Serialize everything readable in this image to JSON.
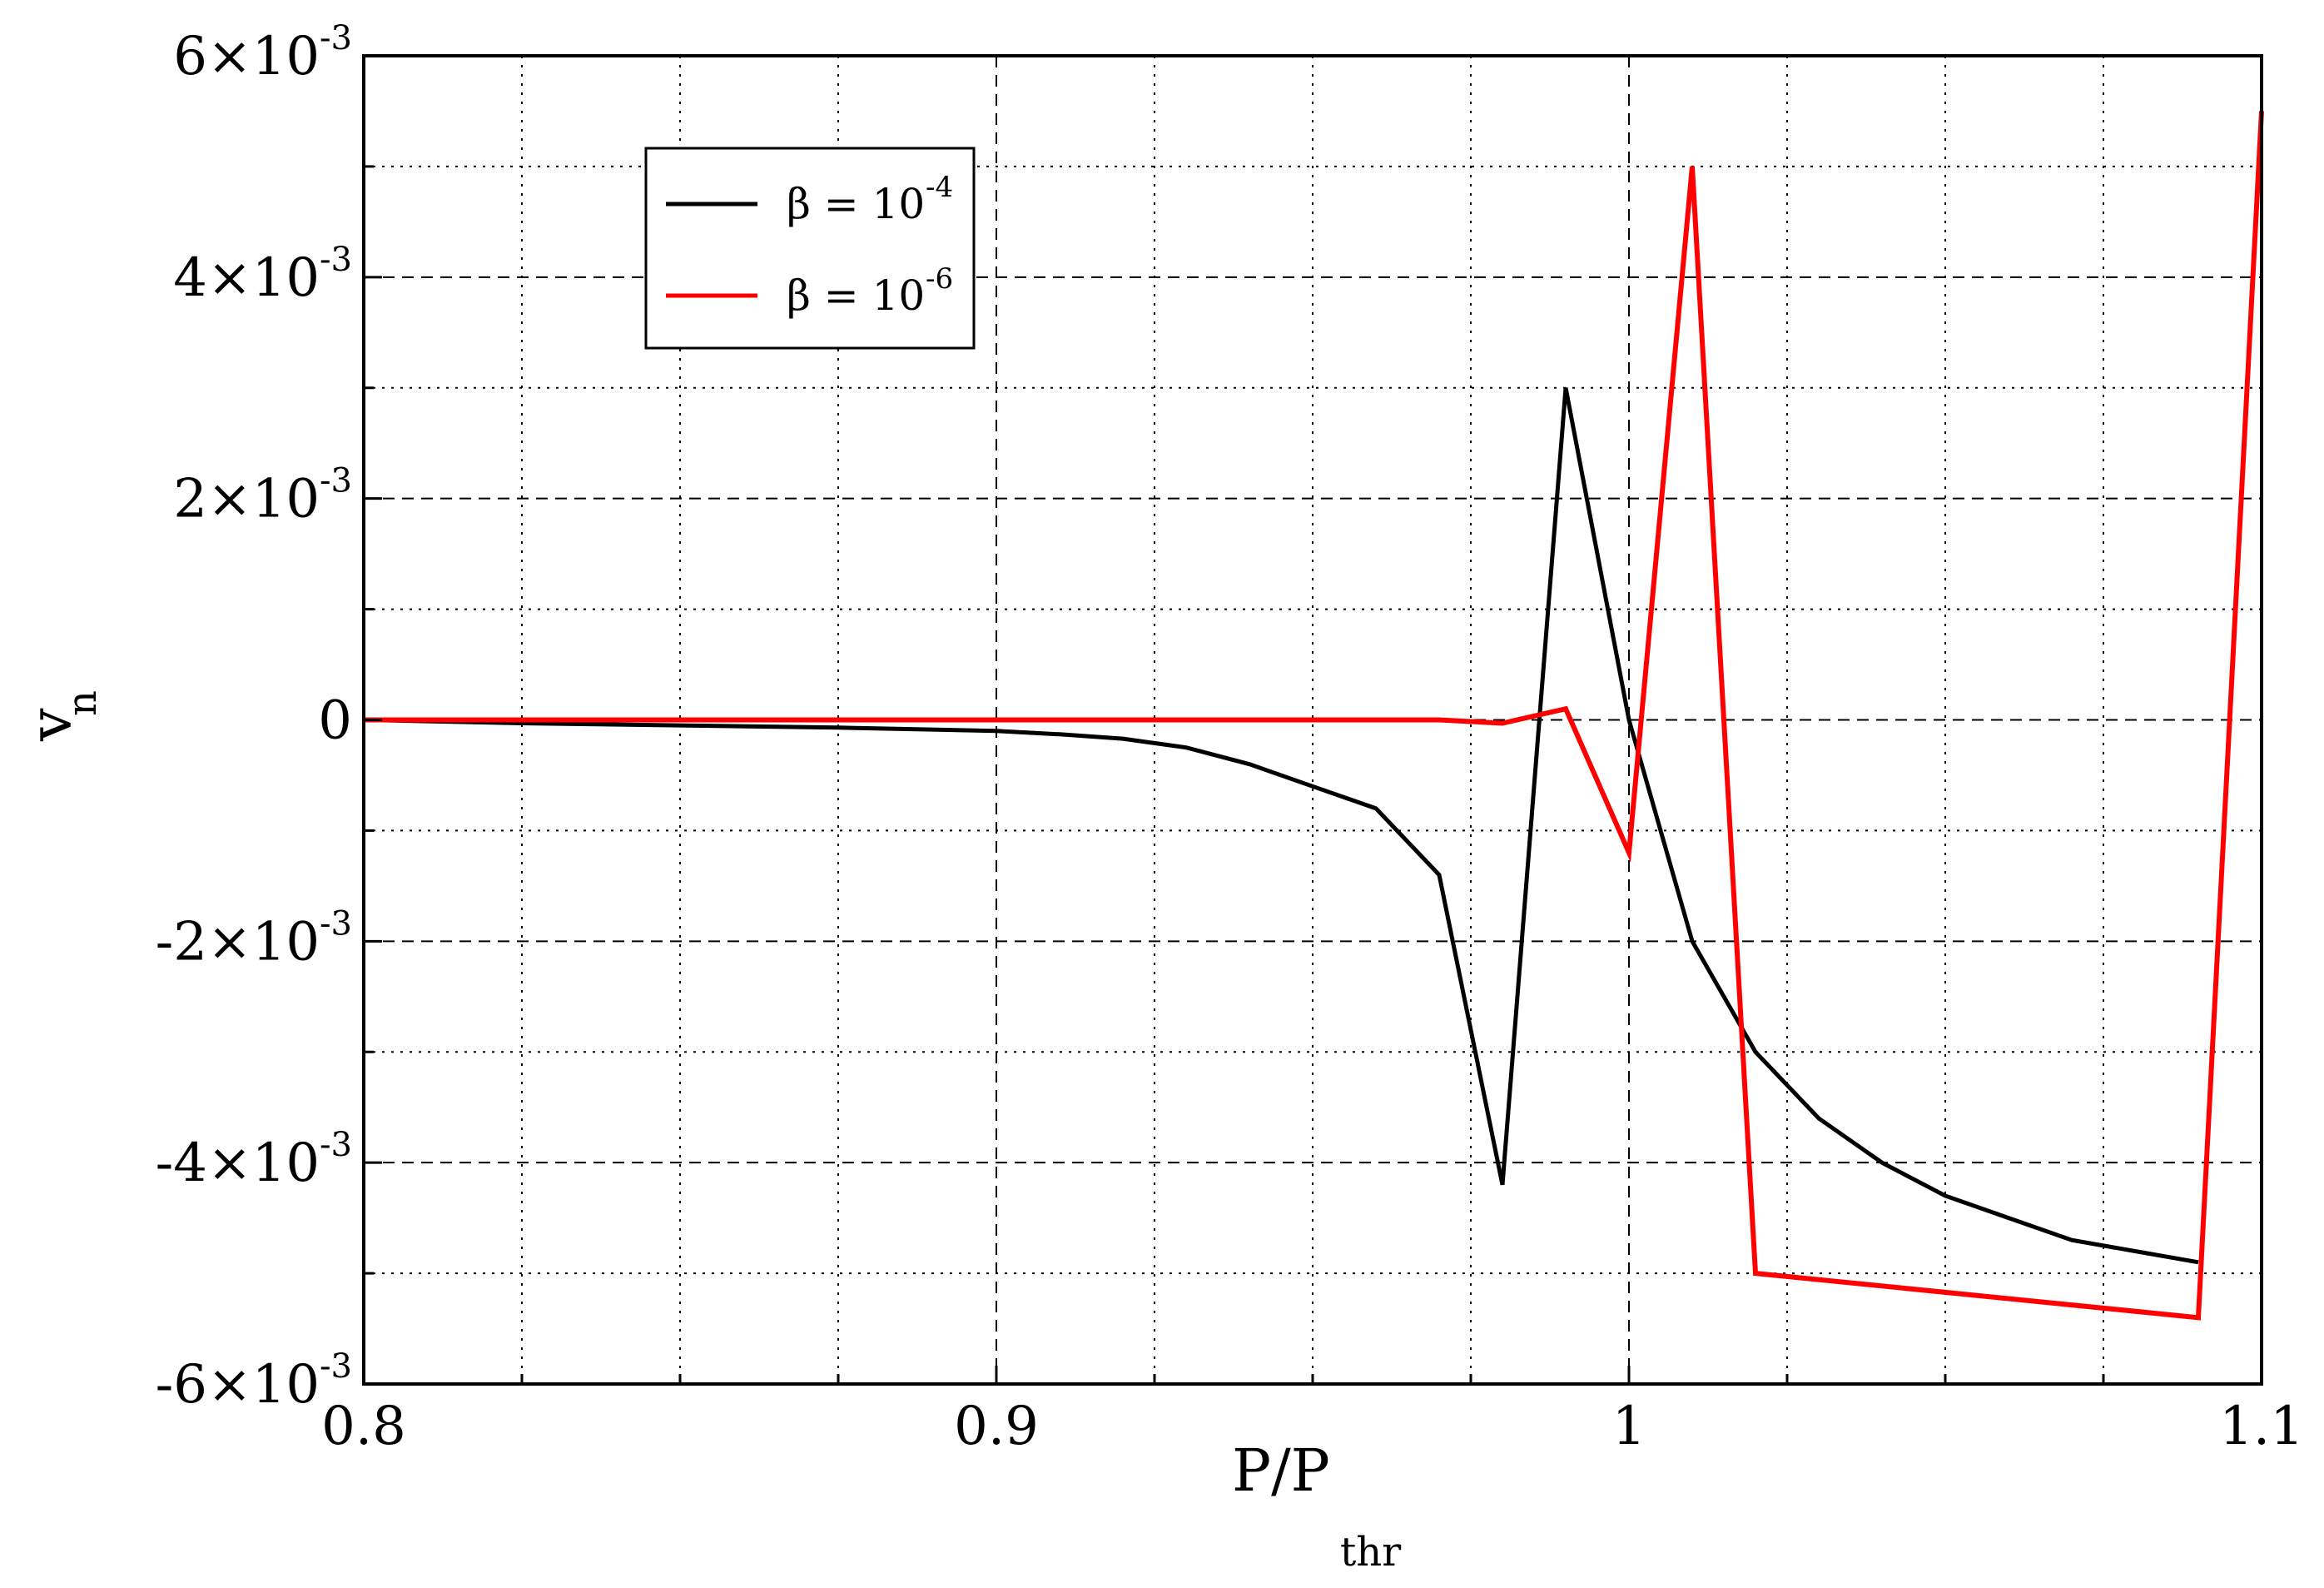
{
  "chart_data": {
    "type": "line",
    "xlabel": "P/P",
    "xlabel_sub": "thr",
    "ylabel": "v",
    "ylabel_sub": "n",
    "xlim": [
      0.8,
      1.1
    ],
    "ylim": [
      -0.006,
      0.006
    ],
    "grid": true,
    "legend_position": "top-left",
    "x_ticks": [
      {
        "value": 0.8,
        "label": "0.8"
      },
      {
        "value": 0.9,
        "label": "0.9"
      },
      {
        "value": 1.0,
        "label": "1"
      },
      {
        "value": 1.1,
        "label": "1.1"
      }
    ],
    "x_minor_ticks": [
      0.825,
      0.85,
      0.875,
      0.925,
      0.95,
      0.975,
      1.025,
      1.05,
      1.075
    ],
    "y_ticks": [
      {
        "value": 0.006,
        "mantissa": "6×10",
        "exponent": "-3"
      },
      {
        "value": 0.004,
        "mantissa": "4×10",
        "exponent": "-3"
      },
      {
        "value": 0.002,
        "mantissa": "2×10",
        "exponent": "-3"
      },
      {
        "value": 0,
        "mantissa": "0",
        "exponent": ""
      },
      {
        "value": -0.002,
        "mantissa": "-2×10",
        "exponent": "-3"
      },
      {
        "value": -0.004,
        "mantissa": "-4×10",
        "exponent": "-3"
      },
      {
        "value": -0.006,
        "mantissa": "-6×10",
        "exponent": "-3"
      }
    ],
    "y_minor_ticks": [
      0.005,
      0.003,
      0.001,
      -0.001,
      -0.003,
      -0.005
    ],
    "series": [
      {
        "name": "β = 10",
        "name_exp": "-4",
        "color": "#000000",
        "x": [
          0.8,
          0.825,
          0.85,
          0.875,
          0.9,
          0.91,
          0.92,
          0.93,
          0.94,
          0.95,
          0.96,
          0.97,
          0.98,
          0.99,
          1.0,
          1.01,
          1.02,
          1.03,
          1.04,
          1.05,
          1.06,
          1.07,
          1.08,
          1.09
        ],
        "y": [
          0,
          -3e-05,
          -5e-05,
          -7e-05,
          -0.0001,
          -0.00013,
          -0.00017,
          -0.00025,
          -0.0004,
          -0.0006,
          -0.0008,
          -0.0014,
          -0.0042,
          0.003,
          0.0,
          -0.002,
          -0.003,
          -0.0036,
          -0.004,
          -0.0043,
          -0.0045,
          -0.0047,
          -0.0048,
          -0.0049
        ]
      },
      {
        "name": "β = 10",
        "name_exp": "-6",
        "color": "#ff0000",
        "x": [
          0.8,
          0.85,
          0.9,
          0.95,
          0.96,
          0.97,
          0.98,
          0.99,
          1.0,
          1.01,
          1.02,
          1.09,
          1.1
        ],
        "y": [
          0,
          0,
          0,
          0,
          0,
          0,
          -3e-05,
          0.0001,
          -0.0012,
          0.005,
          -0.005,
          -0.0054,
          0.0055
        ]
      }
    ]
  }
}
